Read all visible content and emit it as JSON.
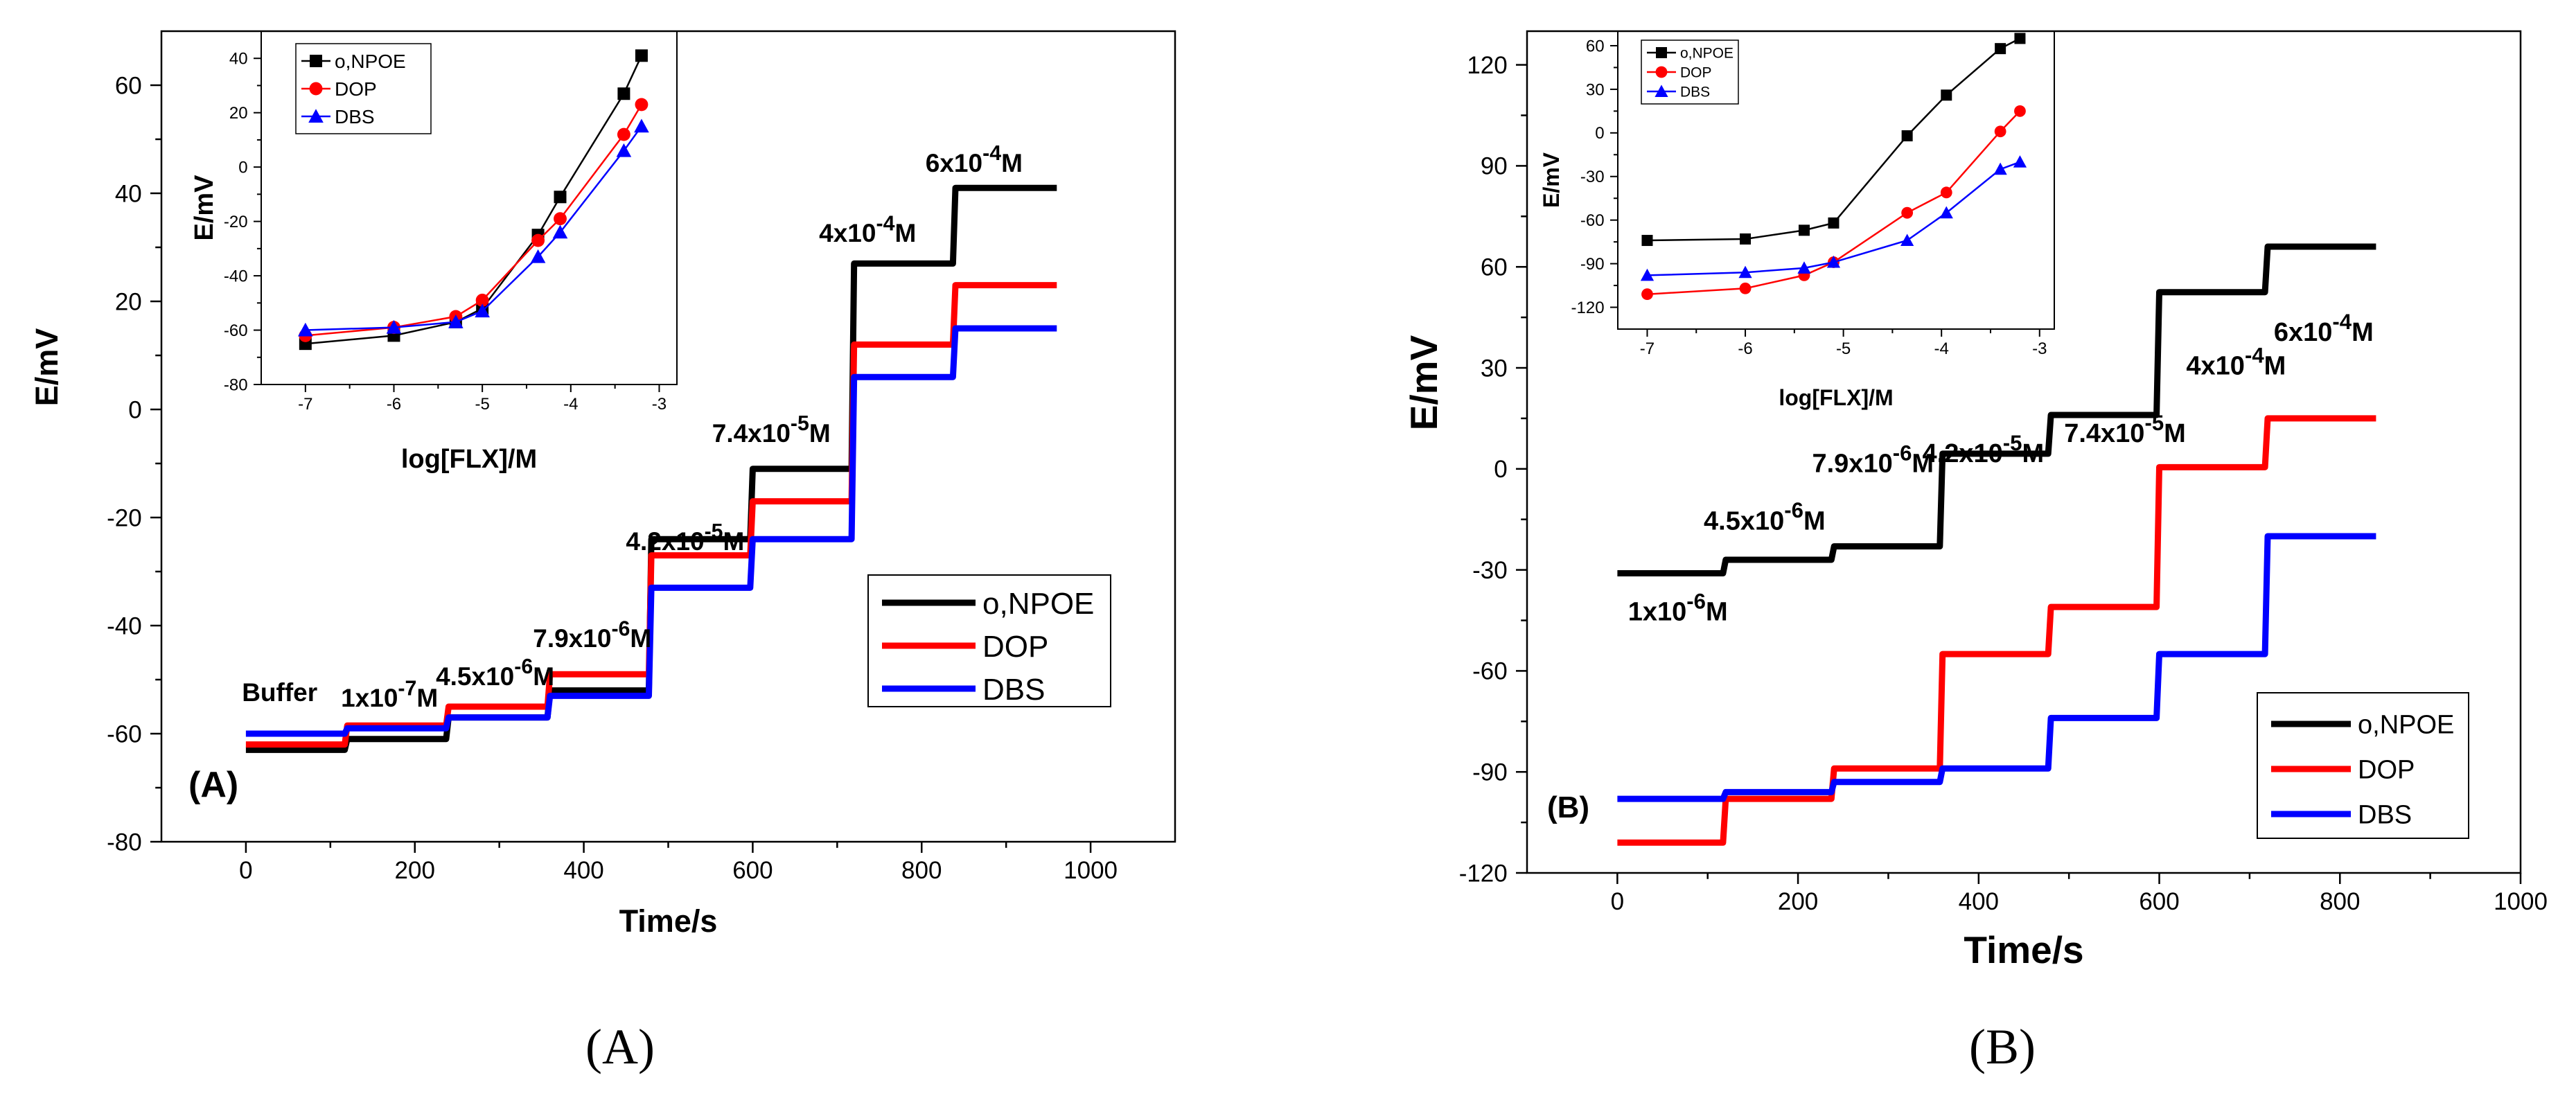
{
  "colors": {
    "o_NPOE": "#000000",
    "DOP": "#ff0000",
    "DBS": "#0000ff"
  },
  "chart_data": [
    {
      "id": "A-main",
      "type": "line",
      "panel_caption": "(A)",
      "inner_label": "(A)",
      "xlabel": "Time/s",
      "ylabel": "E/mV",
      "xlim": [
        -100,
        1100
      ],
      "ylim": [
        -80,
        70
      ],
      "xticks": [
        0,
        200,
        400,
        600,
        800,
        1000
      ],
      "yticks": [
        -80,
        -60,
        -40,
        -20,
        0,
        20,
        40,
        60
      ],
      "legend": "lower-right",
      "series": [
        {
          "name": "o,NPOE",
          "color": "#000000",
          "steps": [
            [
              0,
              -63
            ],
            [
              120,
              -61
            ],
            [
              240,
              -57
            ],
            [
              360,
              -52
            ],
            [
              480,
              -24
            ],
            [
              600,
              -11
            ],
            [
              720,
              27
            ],
            [
              840,
              41
            ]
          ],
          "x_end": 960
        },
        {
          "name": "DOP",
          "color": "#ff0000",
          "steps": [
            [
              0,
              -62
            ],
            [
              120,
              -58.5
            ],
            [
              240,
              -55
            ],
            [
              360,
              -49
            ],
            [
              480,
              -27
            ],
            [
              600,
              -17
            ],
            [
              720,
              12
            ],
            [
              840,
              23
            ]
          ],
          "x_end": 960
        },
        {
          "name": "DBS",
          "color": "#0000ff",
          "steps": [
            [
              0,
              -60
            ],
            [
              120,
              -59
            ],
            [
              240,
              -57
            ],
            [
              360,
              -53
            ],
            [
              480,
              -33
            ],
            [
              600,
              -24
            ],
            [
              720,
              6
            ],
            [
              840,
              15
            ]
          ],
          "x_end": 960
        }
      ],
      "annotations": [
        {
          "text": "Buffer",
          "x": 40,
          "y": -54,
          "base": "Buffer"
        },
        {
          "base": "1x10",
          "exp": "-7",
          "unit": "M",
          "x": 170,
          "y": -55
        },
        {
          "base": "4.5x10",
          "exp": "-6",
          "unit": "M",
          "x": 295,
          "y": -51
        },
        {
          "base": "7.9x10",
          "exp": "-6",
          "unit": "M",
          "x": 410,
          "y": -44
        },
        {
          "base": "4.2x10",
          "exp": "-5",
          "unit": "M",
          "x": 520,
          "y": -26
        },
        {
          "base": "7.4x10",
          "exp": "-5",
          "unit": "M",
          "x": 622,
          "y": -6
        },
        {
          "base": "4x10",
          "exp": "-4",
          "unit": "M",
          "x": 736,
          "y": 31
        },
        {
          "base": "6x10",
          "exp": "-4",
          "unit": "M",
          "x": 862,
          "y": 44
        }
      ]
    },
    {
      "id": "A-inset",
      "type": "line",
      "xlabel": "log[FLX]/M",
      "ylabel": "E/mV",
      "xlim": [
        -7.5,
        -2.8
      ],
      "ylim": [
        -80,
        50
      ],
      "xticks": [
        -7,
        -6,
        -5,
        -4,
        -3
      ],
      "yticks": [
        -80,
        -60,
        -40,
        -20,
        0,
        20,
        40
      ],
      "legend": "top-left",
      "series": [
        {
          "name": "o,NPOE",
          "color": "#000000",
          "marker": "square",
          "x": [
            -7,
            -6,
            -5.3,
            -5,
            -4.37,
            -4.12,
            -3.4,
            -3.2
          ],
          "y": [
            -65,
            -62,
            -57,
            -52,
            -25,
            -11,
            27,
            41
          ]
        },
        {
          "name": "DOP",
          "color": "#ff0000",
          "marker": "circle",
          "x": [
            -7,
            -6,
            -5.3,
            -5,
            -4.37,
            -4.12,
            -3.4,
            -3.2
          ],
          "y": [
            -62,
            -59,
            -55,
            -49,
            -27,
            -19,
            12,
            23
          ]
        },
        {
          "name": "DBS",
          "color": "#0000ff",
          "marker": "triangle",
          "x": [
            -7,
            -6,
            -5.3,
            -5,
            -4.37,
            -4.12,
            -3.4,
            -3.2
          ],
          "y": [
            -60,
            -59,
            -57,
            -53,
            -33,
            -24,
            6,
            15
          ]
        }
      ]
    },
    {
      "id": "B-main",
      "type": "line",
      "panel_caption": "(B)",
      "inner_label": "(B)",
      "xlabel": "Time/s",
      "ylabel": "E/mV",
      "xlim": [
        -100,
        1000
      ],
      "ylim": [
        -120,
        130
      ],
      "xticks": [
        0,
        200,
        400,
        600,
        800,
        1000
      ],
      "yticks": [
        -120,
        -90,
        -60,
        -30,
        0,
        30,
        60,
        90,
        120
      ],
      "legend": "lower-right",
      "series": [
        {
          "name": "o,NPOE",
          "color": "#000000",
          "steps": [
            [
              0,
              -31
            ],
            [
              120,
              -27
            ],
            [
              240,
              -23
            ],
            [
              360,
              4.5
            ],
            [
              480,
              16
            ],
            [
              600,
              52.5
            ],
            [
              720,
              66
            ]
          ],
          "x_end": 840
        },
        {
          "name": "DOP",
          "color": "#ff0000",
          "steps": [
            [
              0,
              -111
            ],
            [
              120,
              -98
            ],
            [
              240,
              -89
            ],
            [
              360,
              -55
            ],
            [
              480,
              -41
            ],
            [
              600,
              0.5
            ],
            [
              720,
              15
            ]
          ],
          "x_end": 840
        },
        {
          "name": "DBS",
          "color": "#0000ff",
          "steps": [
            [
              0,
              -98
            ],
            [
              120,
              -96
            ],
            [
              240,
              -93
            ],
            [
              360,
              -89
            ],
            [
              480,
              -74
            ],
            [
              600,
              -55
            ],
            [
              720,
              -20
            ]
          ],
          "x_end": 840
        }
      ],
      "annotations": [
        {
          "base": "1x10",
          "exp": "-6",
          "unit": "M",
          "x": 67,
          "y": -45
        },
        {
          "base": "4.5x10",
          "exp": "-6",
          "unit": "M",
          "x": 163,
          "y": -18
        },
        {
          "base": "7.9x10",
          "exp": "-6",
          "unit": "M",
          "x": 283,
          "y": -1
        },
        {
          "base": "4.2x10",
          "exp": "-5",
          "unit": "M",
          "x": 405,
          "y": 2
        },
        {
          "base": "7.4x10",
          "exp": "-5",
          "unit": "M",
          "x": 562,
          "y": 8
        },
        {
          "base": "4x10",
          "exp": "-4",
          "unit": "M",
          "x": 685,
          "y": 28
        },
        {
          "base": "6x10",
          "exp": "-4",
          "unit": "M",
          "x": 782,
          "y": 38
        }
      ]
    },
    {
      "id": "B-inset",
      "type": "line",
      "xlabel": "log[FLX]/M",
      "ylabel": "E/mV",
      "xlim": [
        -7.3,
        -2.85
      ],
      "ylim": [
        -135,
        70
      ],
      "xticks": [
        -7,
        -6,
        -5,
        -4,
        -3
      ],
      "yticks": [
        -120,
        -90,
        -60,
        -30,
        0,
        30,
        60
      ],
      "legend": "top-left",
      "series": [
        {
          "name": "o,NPOE",
          "color": "#000000",
          "marker": "square",
          "x": [
            -7,
            -6,
            -5.4,
            -5.1,
            -4.35,
            -3.95,
            -3.4,
            -3.2
          ],
          "y": [
            -74,
            -73,
            -67,
            -62,
            -2,
            26,
            58,
            65
          ]
        },
        {
          "name": "DOP",
          "color": "#ff0000",
          "marker": "circle",
          "x": [
            -7,
            -6,
            -5.4,
            -5.1,
            -4.35,
            -3.95,
            -3.4,
            -3.2
          ],
          "y": [
            -111,
            -107,
            -98,
            -89,
            -55,
            -41,
            1,
            15
          ]
        },
        {
          "name": "DBS",
          "color": "#0000ff",
          "marker": "triangle",
          "x": [
            -7,
            -6,
            -5.4,
            -5.1,
            -4.35,
            -3.95,
            -3.4,
            -3.2
          ],
          "y": [
            -98,
            -96,
            -93,
            -89,
            -74,
            -55,
            -25,
            -20
          ]
        }
      ]
    }
  ]
}
